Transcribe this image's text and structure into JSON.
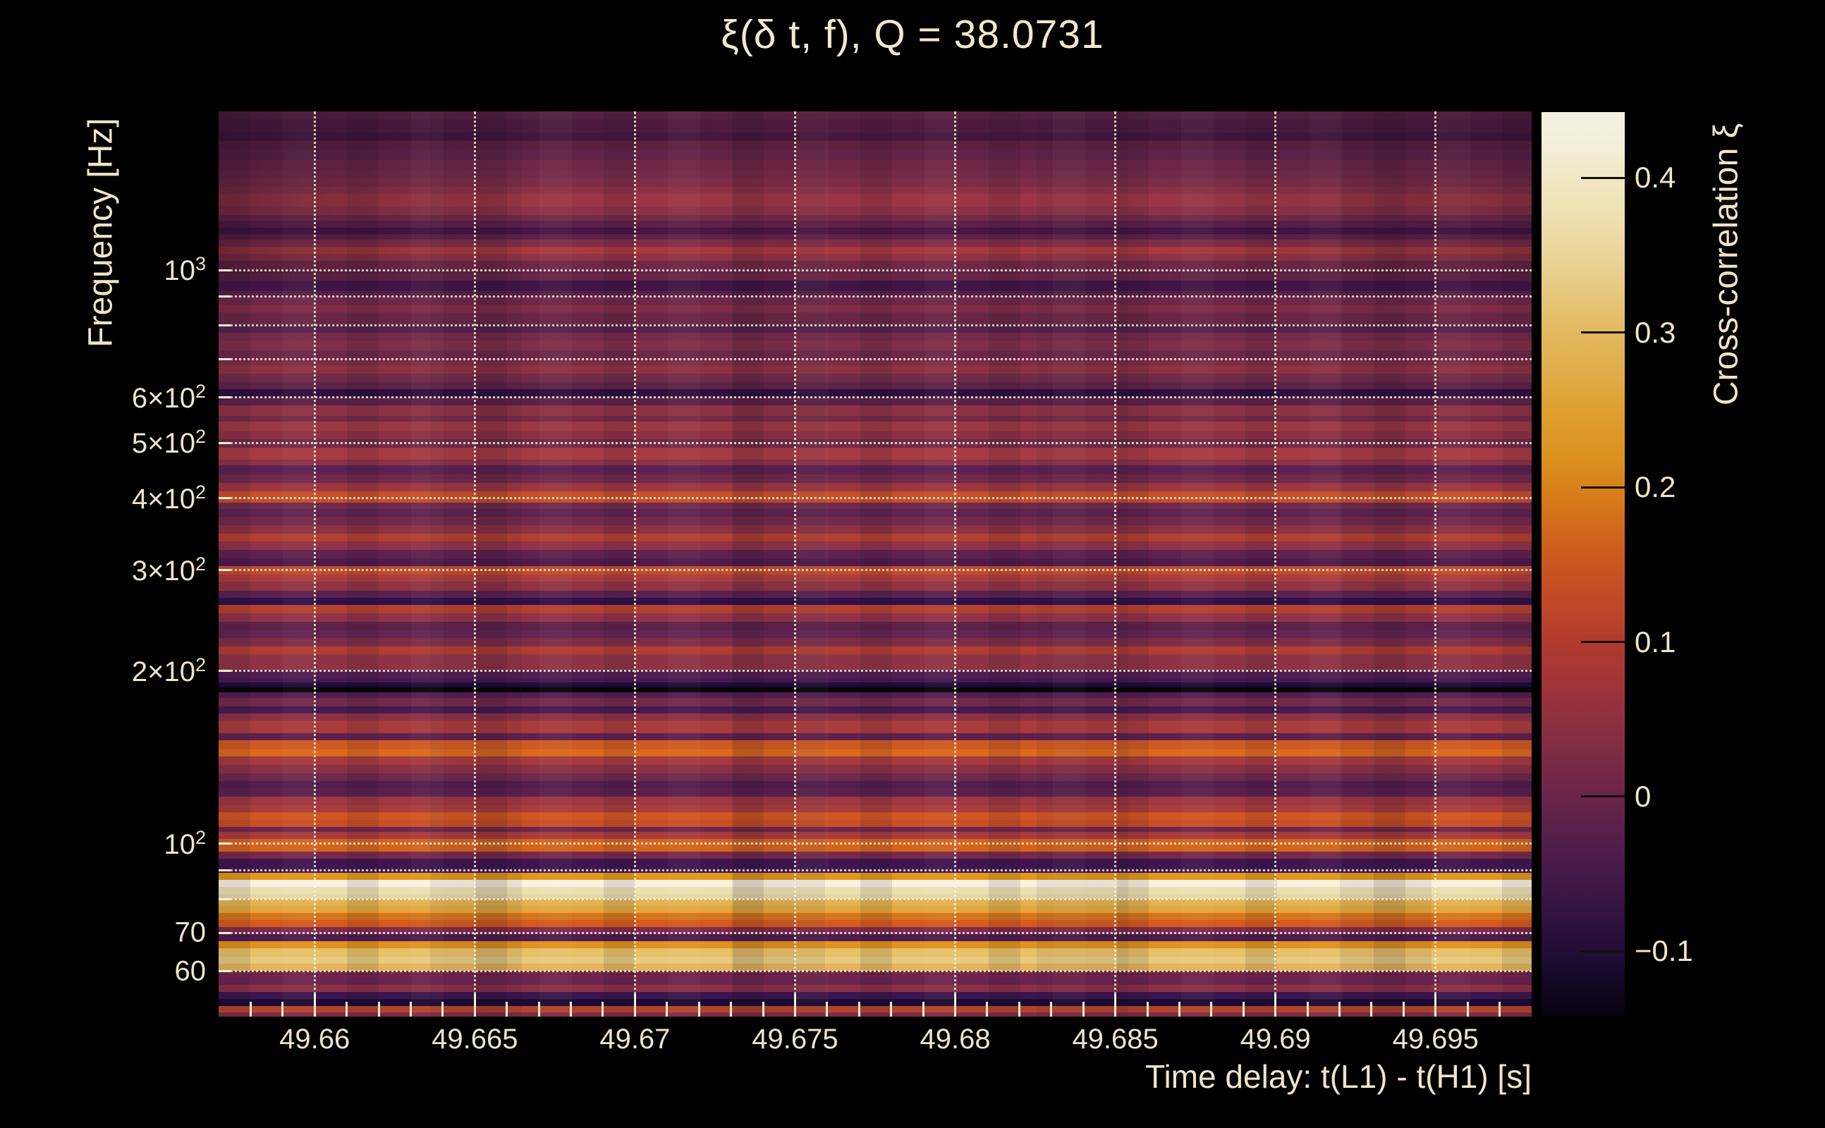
{
  "title": "ξ(δ t, f), Q = 38.0731",
  "colors": {
    "background": "#000000",
    "text": "#efe5c7",
    "grid": "#f6f0de",
    "colorbar_tick": "#14100a"
  },
  "x_axis": {
    "title": "Time delay: t(L1) - t(H1) [s]",
    "major_ticks": [
      {
        "t": 49.66,
        "label": "49.66"
      },
      {
        "t": 49.665,
        "label": "49.665"
      },
      {
        "t": 49.67,
        "label": "49.67"
      },
      {
        "t": 49.675,
        "label": "49.675"
      },
      {
        "t": 49.68,
        "label": "49.68"
      },
      {
        "t": 49.685,
        "label": "49.685"
      },
      {
        "t": 49.69,
        "label": "49.69"
      },
      {
        "t": 49.695,
        "label": "49.695"
      }
    ],
    "minor_tick_start": 49.658,
    "minor_tick_step": 0.001,
    "minor_tick_count": 40
  },
  "y_axis": {
    "title": "Frequency [Hz]",
    "tick_labels": [
      {
        "f": 1000,
        "pre": "10",
        "sup": "3"
      },
      {
        "f": 600,
        "pre": "6×10",
        "sup": "2"
      },
      {
        "f": 500,
        "pre": "5×10",
        "sup": "2"
      },
      {
        "f": 400,
        "pre": "4×10",
        "sup": "2"
      },
      {
        "f": 300,
        "pre": "3×10",
        "sup": "2"
      },
      {
        "f": 200,
        "pre": "2×10",
        "sup": "2"
      },
      {
        "f": 100,
        "pre": "10",
        "sup": "2"
      },
      {
        "f": 70,
        "pre": "70",
        "sup": ""
      },
      {
        "f": 60,
        "pre": "60",
        "sup": ""
      }
    ],
    "grid_freqs": [
      1000,
      900,
      800,
      700,
      600,
      500,
      400,
      300,
      200,
      100,
      90,
      80,
      70,
      60
    ]
  },
  "colorbar": {
    "title": "Cross-correlation ξ",
    "ticks": [
      {
        "v": 0.4,
        "label": "0.4"
      },
      {
        "v": 0.3,
        "label": "0.3"
      },
      {
        "v": 0.2,
        "label": "0.2"
      },
      {
        "v": 0.1,
        "label": "0.1"
      },
      {
        "v": 0,
        "label": "0"
      },
      {
        "v": -0.1,
        "label": "−0.1"
      }
    ],
    "gradient": [
      [
        0,
        "#f4f1e2"
      ],
      [
        0.04,
        "#f3eed8"
      ],
      [
        0.073,
        "#f1e7c3"
      ],
      [
        0.12,
        "#eedfae"
      ],
      [
        0.17,
        "#e9d193"
      ],
      [
        0.22,
        "#e5c26f"
      ],
      [
        0.243,
        "#e2b95e"
      ],
      [
        0.29,
        "#e0ad49"
      ],
      [
        0.33,
        "#dea02f"
      ],
      [
        0.38,
        "#dc921f"
      ],
      [
        0.415,
        "#d8821a"
      ],
      [
        0.46,
        "#d2691b"
      ],
      [
        0.5,
        "#cb5620"
      ],
      [
        0.545,
        "#c04727"
      ],
      [
        0.585,
        "#b23b2f"
      ],
      [
        0.63,
        "#a23438"
      ],
      [
        0.67,
        "#8f3040"
      ],
      [
        0.715,
        "#7c2a45"
      ],
      [
        0.757,
        "#6a2449"
      ],
      [
        0.8,
        "#561f4a"
      ],
      [
        0.845,
        "#441949"
      ],
      [
        0.885,
        "#331343"
      ],
      [
        0.928,
        "#220d37"
      ],
      [
        0.965,
        "#130724"
      ],
      [
        1,
        "#070310"
      ]
    ]
  },
  "chart_data": {
    "type": "heatmap",
    "title": "ξ(δ t, f), Q = 38.0731",
    "q": 38.0731,
    "xlabel": "Time delay: t(L1) - t(H1) [s]",
    "ylabel": "Frequency [Hz]",
    "colorbar_label": "Cross-correlation ξ",
    "x_range_s": [
      49.657,
      49.698
    ],
    "freq_range_hz": [
      50,
      1890
    ],
    "y_scale": "log",
    "grid": "dotted major+minor on log y, major on x",
    "colorbar_range": [
      -0.142,
      0.443
    ],
    "structure": "cross-correlation nearly constant in time delay; horizontal frequency bands",
    "notable_features": [
      "brightest band ξ≈0.44 near 82 Hz",
      "bright gold band ξ≈0.33 near 63 Hz",
      "orange bands ξ≈0.15–0.24 near 95–110 Hz and 140–170 Hz",
      "near-black band ξ≈−0.14 near 188 Hz"
    ],
    "bands_format": "[top_y_px_in_1600px_image, color_hex, approx_xi]; each band spans to next y; plot rows y=158..1442",
    "bands": [
      [
        158,
        "#542041",
        -0.062
      ],
      [
        170,
        "#4a1a41",
        -0.078
      ],
      [
        188,
        "#40173c",
        -0.09
      ],
      [
        200,
        "#59213f",
        -0.052
      ],
      [
        212,
        "#5e234a",
        -0.042
      ],
      [
        227,
        "#6d2747",
        -0.015
      ],
      [
        242,
        "#712b49",
        -0.002
      ],
      [
        253,
        "#7c2e48",
        0.01
      ],
      [
        265,
        "#8a3245",
        0.033
      ],
      [
        275,
        "#9c3744",
        0.06
      ],
      [
        293,
        "#8c3347",
        0.038
      ],
      [
        305,
        "#712a48",
        -0.002
      ],
      [
        313,
        "#5c2048",
        -0.048
      ],
      [
        323,
        "#431545",
        -0.088
      ],
      [
        332,
        "#5e2248",
        -0.043
      ],
      [
        340,
        "#7e2e47",
        0.013
      ],
      [
        350,
        "#ab3a3d",
        0.086
      ],
      [
        360,
        "#8e3345",
        0.042
      ],
      [
        370,
        "#6d2846",
        -0.015
      ],
      [
        383,
        "#642546",
        -0.03
      ],
      [
        398,
        "#401546",
        -0.09
      ],
      [
        413,
        "#552047",
        -0.056
      ],
      [
        420,
        "#6b2847",
        -0.02
      ],
      [
        432,
        "#7e2d45",
        0.013
      ],
      [
        443,
        "#6a2646",
        -0.022
      ],
      [
        460,
        "#56214a",
        -0.055
      ],
      [
        472,
        "#732b48",
        0
      ],
      [
        483,
        "#7e2f49",
        0.014
      ],
      [
        497,
        "#6b2847",
        -0.02
      ],
      [
        508,
        "#7b2d46",
        0.009
      ],
      [
        518,
        "#8d3243",
        0.04
      ],
      [
        530,
        "#712b48",
        -0.002
      ],
      [
        542,
        "#5c2248",
        -0.047
      ],
      [
        552,
        "#2e0f3f",
        -0.106
      ],
      [
        563,
        "#5a2147",
        -0.05
      ],
      [
        575,
        "#8c3244",
        0.039
      ],
      [
        590,
        "#712b48",
        -0.002
      ],
      [
        598,
        "#9c3742",
        0.061
      ],
      [
        612,
        "#8a3146",
        0.034
      ],
      [
        623,
        "#6f2a49",
        -0.008
      ],
      [
        635,
        "#a53b42",
        0.077
      ],
      [
        652,
        "#8b3247",
        0.036
      ],
      [
        660,
        "#5c2150",
        -0.047
      ],
      [
        673,
        "#6f294b",
        -0.009
      ],
      [
        685,
        "#9a3743",
        0.058
      ],
      [
        697,
        "#c84f27",
        0.137
      ],
      [
        707,
        "#c54c29",
        0.13
      ],
      [
        713,
        "#702b4c",
        -0.004
      ],
      [
        722,
        "#5e2350",
        -0.042
      ],
      [
        733,
        "#72294a",
        -0.001
      ],
      [
        745,
        "#8c3146",
        0.037
      ],
      [
        757,
        "#b2402f",
        0.098
      ],
      [
        768,
        "#903348",
        0.043
      ],
      [
        780,
        "#5f224e",
        -0.04
      ],
      [
        792,
        "#4e1b4b",
        -0.072
      ],
      [
        803,
        "#c14b2b",
        0.124
      ],
      [
        815,
        "#ab3d3c",
        0.087
      ],
      [
        825,
        "#8f3345",
        0.043
      ],
      [
        838,
        "#5a2150",
        -0.05
      ],
      [
        848,
        "#2f1148",
        -0.104
      ],
      [
        858,
        "#b4402f",
        0.1
      ],
      [
        870,
        "#8f3347",
        0.042
      ],
      [
        882,
        "#5e224e",
        -0.043
      ],
      [
        895,
        "#632450",
        -0.032
      ],
      [
        905,
        "#7e2d49",
        0.012
      ],
      [
        917,
        "#b03e31",
        0.094
      ],
      [
        928,
        "#8e3346",
        0.041
      ],
      [
        940,
        "#8c3345",
        0.039
      ],
      [
        951,
        "#511d50",
        -0.066
      ],
      [
        962,
        "#461a51",
        -0.079
      ],
      [
        968,
        "#1d0b38",
        -0.12
      ],
      [
        975,
        "#060309",
        -0.141
      ],
      [
        982,
        "#531e4e",
        -0.06
      ],
      [
        990,
        "#722a4a",
        -0.001
      ],
      [
        1002,
        "#451a52",
        -0.08
      ],
      [
        1012,
        "#8c3245",
        0.039
      ],
      [
        1022,
        "#a83b3c",
        0.083
      ],
      [
        1040,
        "#5f2150",
        -0.045
      ],
      [
        1050,
        "#cf5a21",
        0.153
      ],
      [
        1063,
        "#d96a1e",
        0.18
      ],
      [
        1073,
        "#a53a3e",
        0.078
      ],
      [
        1085,
        "#8a3146",
        0.034
      ],
      [
        1097,
        "#6e294b",
        -0.01
      ],
      [
        1108,
        "#521d4f",
        -0.064
      ],
      [
        1118,
        "#5b204d",
        -0.049
      ],
      [
        1130,
        "#9d3741",
        0.063
      ],
      [
        1142,
        "#a93c3c",
        0.084
      ],
      [
        1152,
        "#d05621",
        0.15
      ],
      [
        1163,
        "#c74e27",
        0.134
      ],
      [
        1173,
        "#6e2749",
        -0.012
      ],
      [
        1180,
        "#a73b3e",
        0.08
      ],
      [
        1190,
        "#d3641d",
        0.168
      ],
      [
        1208,
        "#76294a",
        0.003
      ],
      [
        1218,
        "#3f1550",
        -0.09
      ],
      [
        1231,
        "#411751",
        -0.088
      ],
      [
        1238,
        "#e2961b",
        0.242
      ],
      [
        1248,
        "#f7f3e3",
        0.435
      ],
      [
        1258,
        "#ece0b2",
        0.38
      ],
      [
        1268,
        "#e6d9a9",
        0.368
      ],
      [
        1275,
        "#e2b354",
        0.291
      ],
      [
        1285,
        "#e2a83d",
        0.272
      ],
      [
        1295,
        "#d8741b",
        0.192
      ],
      [
        1305,
        "#d35a20",
        0.157
      ],
      [
        1315,
        "#7e2b47",
        0.012
      ],
      [
        1325,
        "#4c1b50",
        -0.073
      ],
      [
        1335,
        "#e0921c",
        0.237
      ],
      [
        1345,
        "#e7c06a",
        0.31
      ],
      [
        1357,
        "#e7cb81",
        0.33
      ],
      [
        1367,
        "#e3b459",
        0.293
      ],
      [
        1377,
        "#6f2549",
        -0.008
      ],
      [
        1387,
        "#6b2450",
        -0.02
      ],
      [
        1397,
        "#8a3148",
        0.033
      ],
      [
        1407,
        "#3c164e",
        -0.094
      ],
      [
        1417,
        "#190b33",
        -0.124
      ],
      [
        1427,
        "#b4422a",
        0.1
      ],
      [
        1436,
        "#7e2c45",
        0.012
      ]
    ]
  }
}
